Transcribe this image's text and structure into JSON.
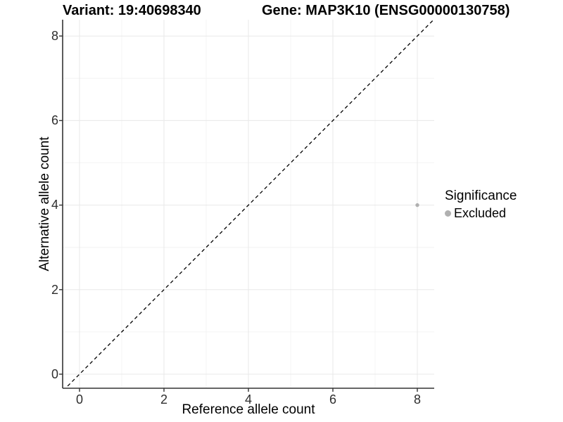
{
  "header": {
    "variant_title": "Variant: 19:40698340",
    "gene_title": "Gene: MAP3K10 (ENSG00000130758)"
  },
  "chart_data": {
    "type": "scatter",
    "title": "Variant: 19:40698340 — Gene: MAP3K10 (ENSG00000130758)",
    "xlabel": "Reference allele count",
    "ylabel": "Alternative allele count",
    "xlim": [
      -0.4,
      8.4
    ],
    "ylim": [
      -0.35,
      8.4
    ],
    "x_ticks": [
      0,
      2,
      4,
      6,
      8
    ],
    "y_ticks": [
      0,
      2,
      4,
      6,
      8
    ],
    "x_minor_ticks": [
      1,
      3,
      5,
      7
    ],
    "y_minor_ticks": [
      1,
      3,
      5,
      7
    ],
    "x_tick_labels": [
      "0",
      "2",
      "4",
      "6",
      "8"
    ],
    "y_tick_labels": [
      "0",
      "2",
      "4",
      "6",
      "8"
    ],
    "grid": "major and minor gridlines, white panel background",
    "series": [
      {
        "name": "Excluded",
        "color": "#b0b0b0",
        "points": [
          {
            "x": 8,
            "y": 4
          }
        ]
      }
    ],
    "reference_line": {
      "equation": "y = x",
      "style": "dashed",
      "color": "#000000"
    },
    "legend": {
      "position": "right",
      "title": "Significance",
      "items": [
        {
          "label": "Excluded",
          "color": "#b0b0b0"
        }
      ]
    }
  },
  "colors": {
    "background": "#ffffff",
    "axis": "#333333",
    "tick_text": "#2e2e2e",
    "grid_major": "#e8e8e8",
    "grid_minor": "#f4f4f4",
    "point": "#b0b0b0",
    "diagonal": "#000000"
  }
}
